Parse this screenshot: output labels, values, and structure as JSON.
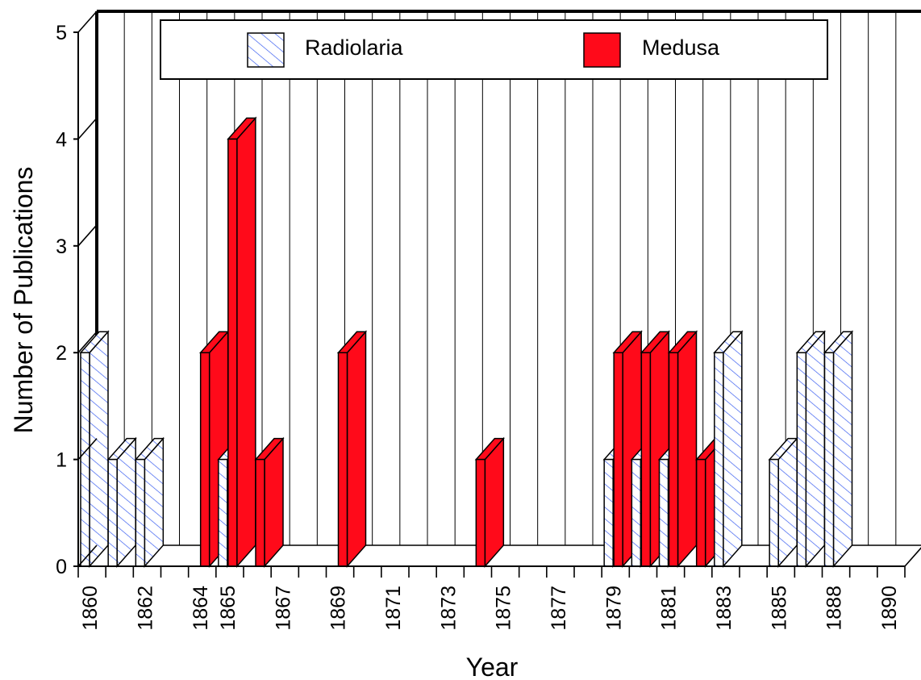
{
  "chart_data": {
    "type": "bar",
    "style": "3d-column",
    "xlabel": "Year",
    "ylabel": "Number of Publications",
    "ylim": [
      0,
      5
    ],
    "yticks": [
      "0",
      "1",
      "2",
      "3",
      "4",
      "5"
    ],
    "grid": "vertical",
    "legend_position": "top",
    "categories": [
      "1860",
      "1861",
      "1862",
      "1863",
      "1864",
      "1865",
      "1866",
      "1867",
      "1868",
      "1869",
      "1870",
      "1871",
      "1872",
      "1873",
      "1874",
      "1875",
      "1876",
      "1877",
      "1878",
      "1879",
      "1880",
      "1881",
      "1882",
      "1883",
      "1884",
      "1885",
      "1886",
      "1888",
      "1889",
      "1890"
    ],
    "tick_labels": [
      "1860",
      "",
      "1862",
      "",
      "1864",
      "1865",
      "",
      "1867",
      "",
      "1869",
      "",
      "1871",
      "",
      "1873",
      "",
      "1875",
      "",
      "1877",
      "",
      "1879",
      "",
      "1881",
      "",
      "1883",
      "",
      "1885",
      "",
      "1888",
      "",
      "1890"
    ],
    "series": [
      {
        "name": "Radiolaria",
        "color": "#ffffff",
        "hatch": "#3a5ef0",
        "values": [
          2,
          1,
          1,
          0,
          0,
          1,
          0,
          0,
          0,
          0,
          0,
          0,
          0,
          0,
          0,
          0,
          0,
          0,
          0,
          1,
          1,
          1,
          0,
          2,
          0,
          1,
          2,
          2,
          0,
          0
        ]
      },
      {
        "name": "Medusa",
        "color": "#ff0a1a",
        "values": [
          0,
          0,
          0,
          0,
          2,
          4,
          1,
          0,
          0,
          2,
          0,
          0,
          0,
          0,
          1,
          0,
          0,
          0,
          0,
          2,
          2,
          2,
          1,
          0,
          0,
          0,
          0,
          0,
          0,
          0
        ]
      }
    ]
  }
}
